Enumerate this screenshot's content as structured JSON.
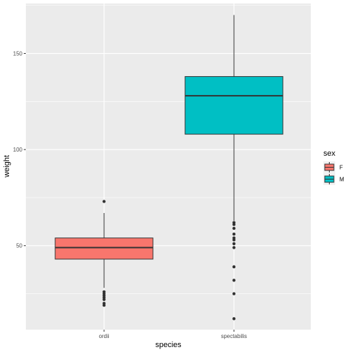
{
  "chart_data": {
    "type": "boxplot",
    "xlabel": "species",
    "ylabel": "weight",
    "categories": [
      "ordii",
      "spectabilis"
    ],
    "y_ticks": [
      50,
      100,
      150
    ],
    "ylim": [
      6.3,
      176
    ],
    "grid": true,
    "legend": {
      "title": "sex",
      "position": "right",
      "entries": [
        {
          "label": "F",
          "color": "#F8766D"
        },
        {
          "label": "M",
          "color": "#00BFC4"
        }
      ]
    },
    "boxes": [
      {
        "category": "ordii",
        "sex": "F",
        "color": "#F8766D",
        "whisker_low": 28,
        "q1": 43,
        "median": 49,
        "q3": 54,
        "whisker_high": 67,
        "outliers": [
          73,
          26,
          25,
          24,
          23,
          22,
          20,
          19
        ]
      },
      {
        "category": "spectabilis",
        "sex": "M",
        "color": "#00BFC4",
        "whisker_low": 63,
        "q1": 108,
        "median": 128,
        "q3": 138,
        "whisker_high": 170,
        "outliers": [
          62,
          61,
          59,
          56,
          54,
          53,
          51,
          49,
          39,
          32,
          25,
          12
        ]
      }
    ]
  }
}
